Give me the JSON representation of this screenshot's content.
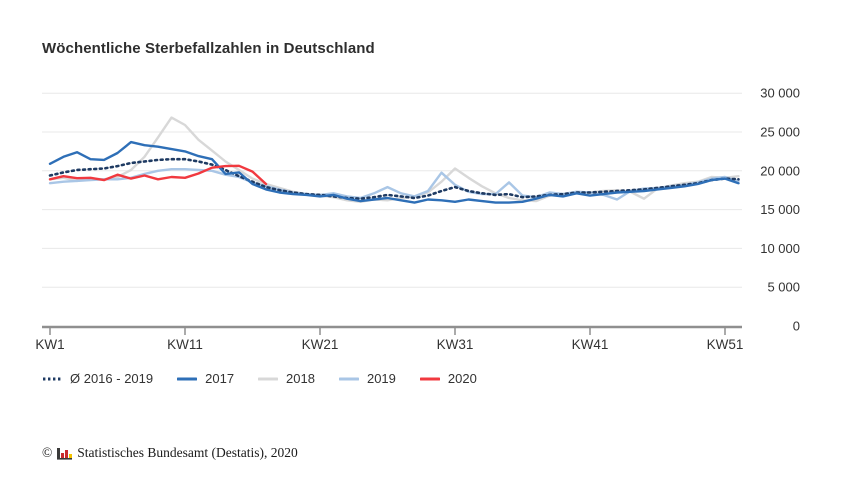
{
  "title": "Wöchentliche Sterbefallzahlen in Deutschland",
  "colors": {
    "grid": "#e8e8e8",
    "axis": "#8f8f8f",
    "tick_label": "#333333",
    "title_text": "#2e2e2e",
    "avg_line": "#1f3b63",
    "line_2017": "#2e6fb7",
    "line_2018": "#d8d8d8",
    "line_2019": "#a9c6e6",
    "line_2020": "#f1393f"
  },
  "chart_data": {
    "type": "line",
    "title": "Wöchentliche Sterbefallzahlen in Deutschland",
    "x_axis": {
      "unit": "calendar week",
      "range": [
        1,
        52
      ],
      "tick_weeks": [
        1,
        11,
        21,
        31,
        41,
        51
      ],
      "tick_labels": [
        "KW1",
        "KW11",
        "KW21",
        "KW31",
        "KW41",
        "KW51"
      ]
    },
    "y_axis": {
      "range": [
        0,
        30000
      ],
      "tick_values": [
        0,
        5000,
        10000,
        15000,
        20000,
        25000,
        30000
      ],
      "tick_labels": [
        "0",
        "5 000",
        "10 000",
        "15 000",
        "20 000",
        "25 000",
        "30 000"
      ],
      "grid": true,
      "labels_position": "right"
    },
    "legend_position": "bottom-left",
    "series": [
      {
        "name": "2018",
        "color": "#d8d8d8",
        "style": "solid",
        "start_week": 1,
        "values": [
          18900,
          19100,
          18700,
          19000,
          18900,
          19200,
          20100,
          21800,
          24300,
          26850,
          25900,
          24000,
          22600,
          21200,
          20100,
          19000,
          18300,
          17800,
          17300,
          17000,
          16800,
          16600,
          16200,
          16000,
          16300,
          16200,
          16500,
          16700,
          17200,
          18600,
          20300,
          19100,
          18000,
          17100,
          16500,
          16200,
          16100,
          16800,
          17000,
          17300,
          17200,
          17400,
          17500,
          17300,
          16400,
          17700,
          18100,
          18400,
          18600,
          19200,
          19100,
          19300
        ]
      },
      {
        "name": "2019",
        "color": "#a9c6e6",
        "style": "solid",
        "start_week": 1,
        "values": [
          18400,
          18600,
          18700,
          18800,
          18900,
          18900,
          19100,
          19600,
          20000,
          20200,
          20200,
          20100,
          20000,
          19500,
          19200,
          18500,
          18000,
          17600,
          17200,
          17000,
          16900,
          17100,
          16700,
          16500,
          17100,
          17900,
          17100,
          16700,
          17400,
          19750,
          18200,
          17300,
          17000,
          17000,
          18500,
          16800,
          16600,
          17200,
          17000,
          17300,
          17200,
          16900,
          16300,
          17400,
          17700,
          17800,
          18000,
          18200,
          18500,
          19000,
          19200,
          18700
        ]
      },
      {
        "name": "Ø 2016 - 2019",
        "color": "#1f3b63",
        "style": "dotted",
        "start_week": 1,
        "values": [
          19400,
          19800,
          20100,
          20200,
          20300,
          20600,
          21000,
          21200,
          21400,
          21500,
          21500,
          21200,
          20800,
          20100,
          19300,
          18600,
          17900,
          17500,
          17200,
          17000,
          16900,
          16700,
          16500,
          16400,
          16600,
          16900,
          16700,
          16500,
          16800,
          17400,
          17900,
          17400,
          17100,
          16900,
          17000,
          16600,
          16700,
          16900,
          17000,
          17200,
          17200,
          17300,
          17400,
          17500,
          17600,
          17800,
          18000,
          18200,
          18400,
          18800,
          19000,
          18900
        ]
      },
      {
        "name": "2017",
        "color": "#2e6fb7",
        "style": "solid",
        "start_week": 1,
        "values": [
          20900,
          21800,
          22400,
          21500,
          21400,
          22300,
          23700,
          23300,
          23100,
          22800,
          22500,
          21900,
          21500,
          19600,
          19800,
          18300,
          17600,
          17200,
          17000,
          16900,
          16700,
          16900,
          16400,
          16100,
          16300,
          16500,
          16200,
          15900,
          16300,
          16200,
          16000,
          16300,
          16100,
          15900,
          15900,
          16000,
          16400,
          16900,
          16700,
          17100,
          16800,
          17000,
          17200,
          17300,
          17400,
          17600,
          17800,
          18000,
          18300,
          18800,
          19000,
          18400
        ]
      },
      {
        "name": "2020",
        "color": "#f1393f",
        "style": "solid",
        "start_week": 1,
        "values": [
          18900,
          19300,
          19050,
          19100,
          18800,
          19500,
          19000,
          19400,
          18900,
          19200,
          19100,
          19650,
          20400,
          20600,
          20650,
          19900,
          18300
        ]
      }
    ]
  },
  "legend": {
    "items": [
      {
        "label": "Ø 2016 - 2019",
        "color": "#1f3b63",
        "style": "dotted"
      },
      {
        "label": "2017",
        "color": "#2e6fb7",
        "style": "solid"
      },
      {
        "label": "2018",
        "color": "#d8d8d8",
        "style": "solid"
      },
      {
        "label": "2019",
        "color": "#a9c6e6",
        "style": "solid"
      },
      {
        "label": "2020",
        "color": "#f1393f",
        "style": "solid"
      }
    ]
  },
  "footer": {
    "copyright": "©",
    "source": "Statistisches Bundesamt (Destatis), 2020"
  }
}
